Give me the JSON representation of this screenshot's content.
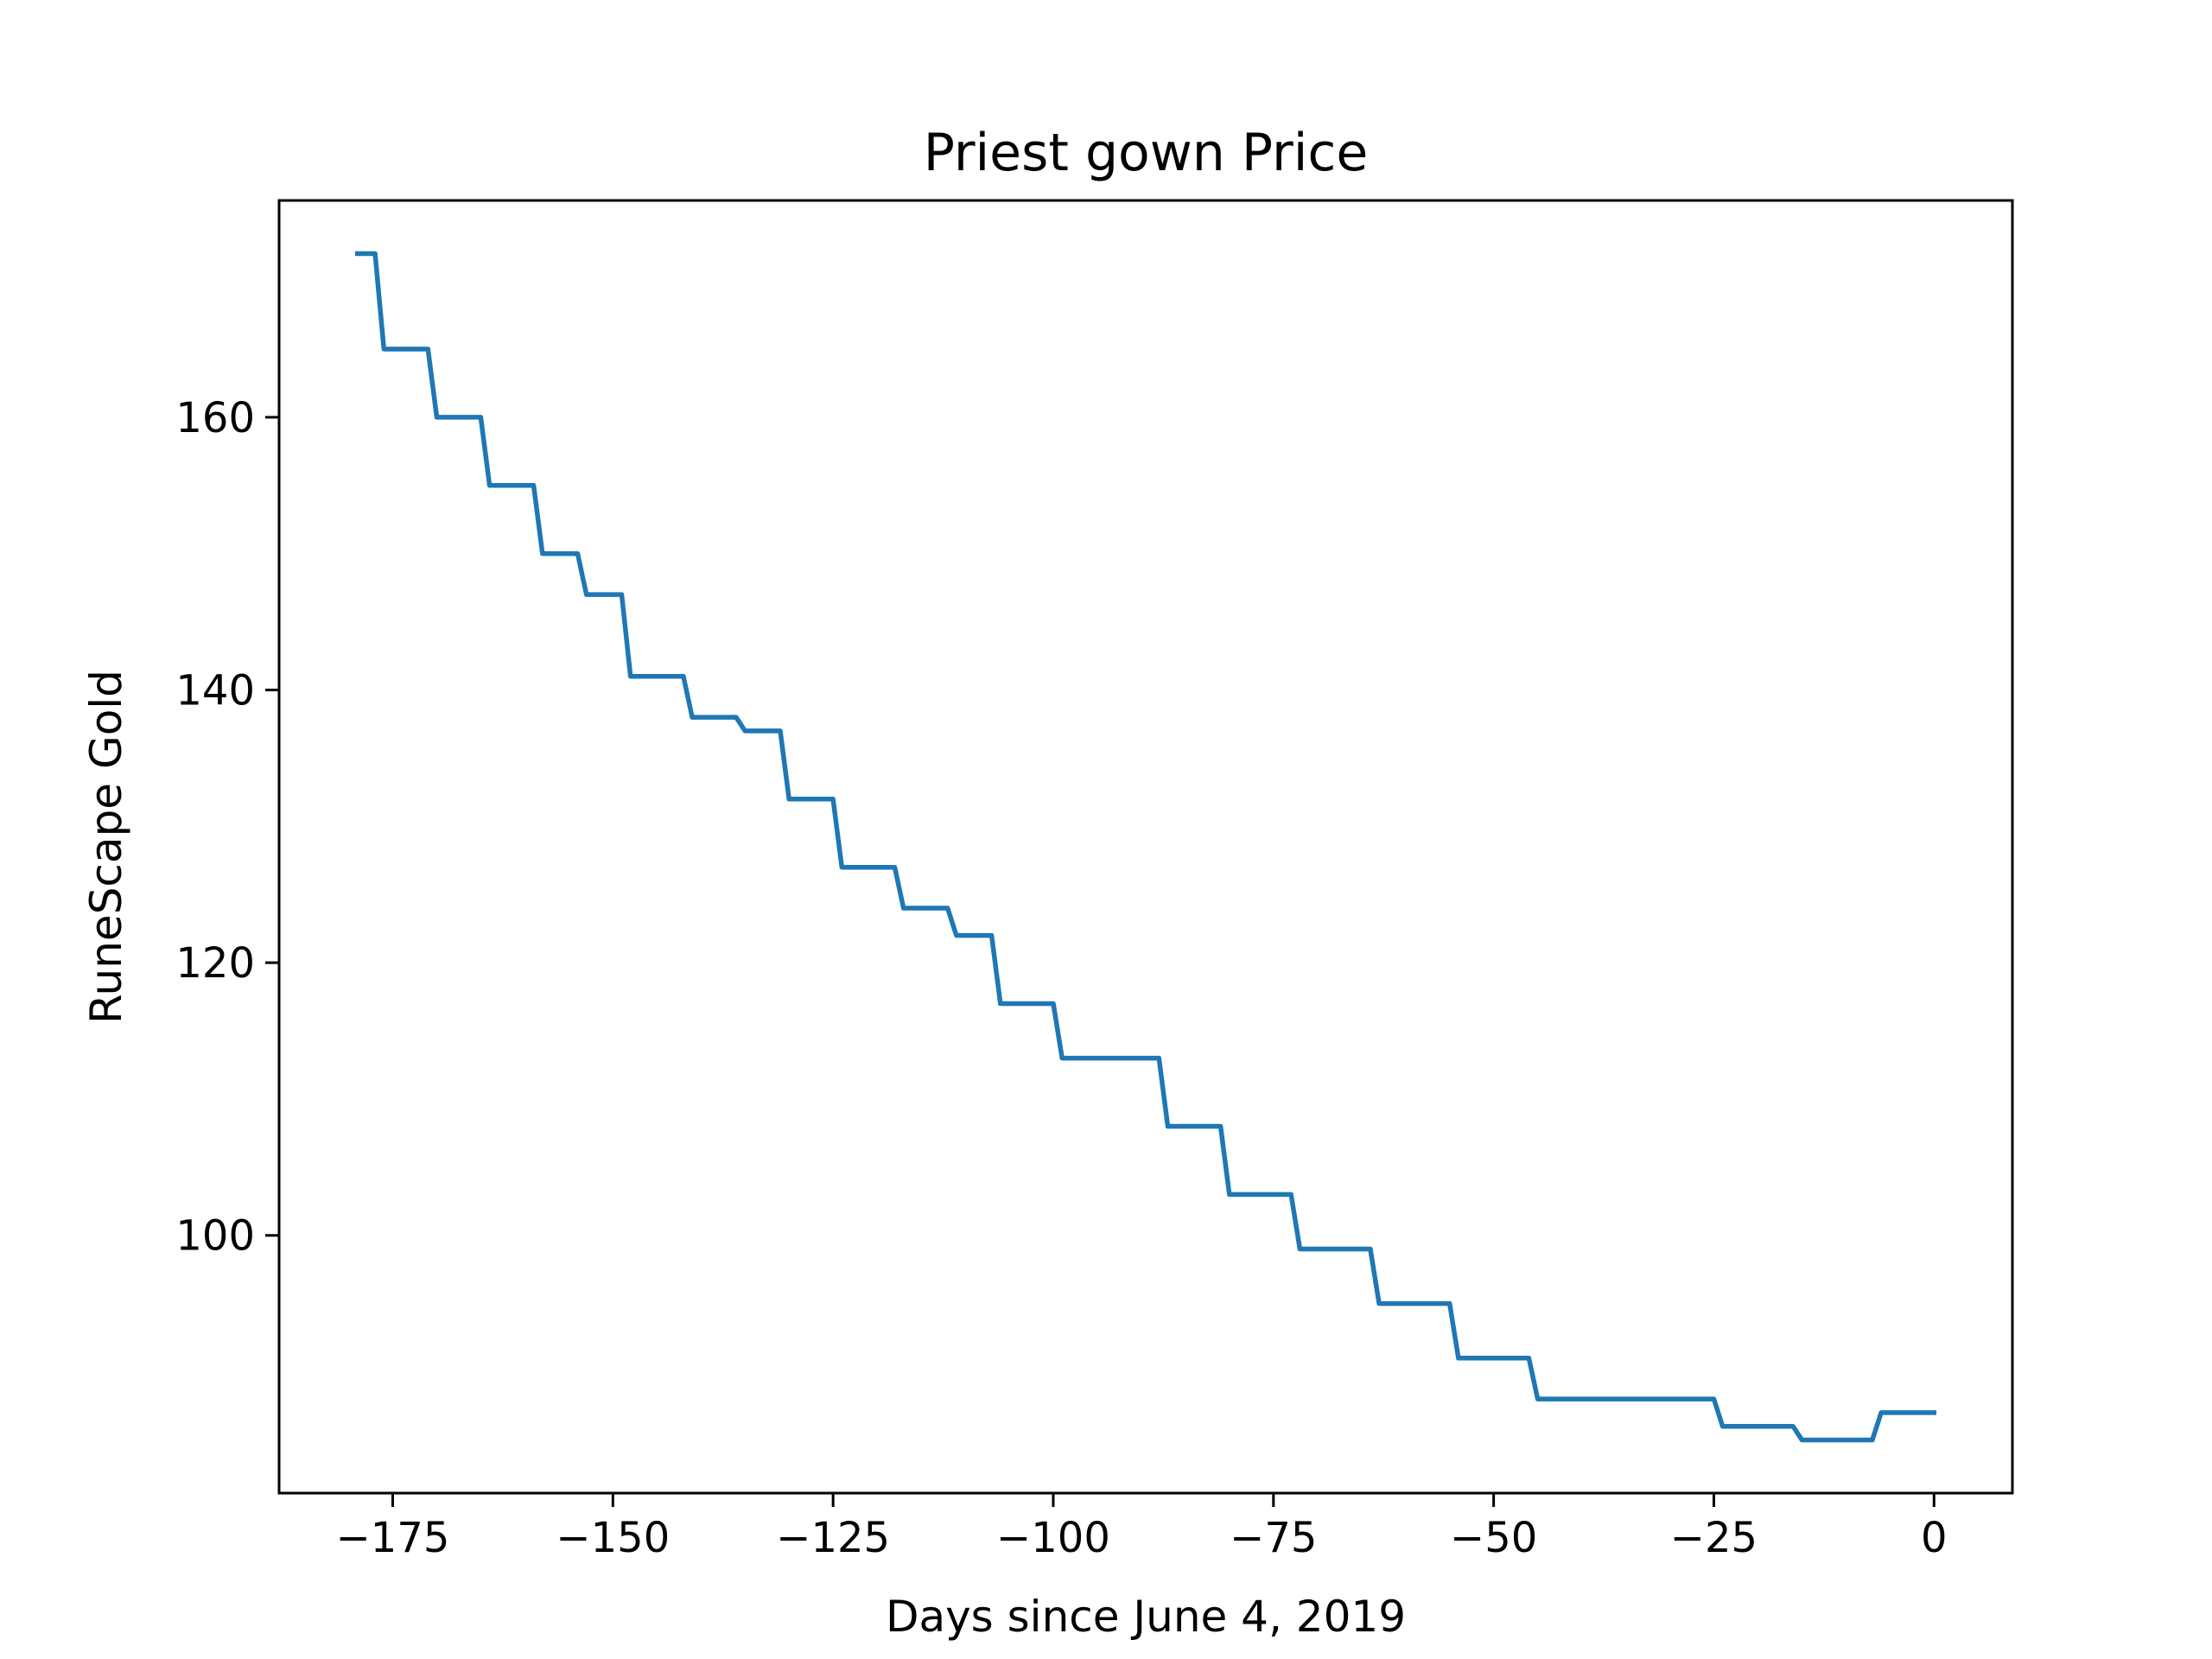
{
  "chart_data": {
    "type": "line",
    "title": "Priest gown Price",
    "xlabel": "Days since June 4, 2019",
    "ylabel": "RuneScape Gold",
    "xlim": [
      -187.9,
      8.9
    ],
    "ylim": [
      81.1,
      175.9
    ],
    "xticks": [
      -175,
      -150,
      -125,
      -100,
      -75,
      -50,
      -25,
      0
    ],
    "xtick_labels": [
      "−175",
      "−150",
      "−125",
      "−100",
      "−75",
      "−50",
      "−25",
      "0"
    ],
    "yticks": [
      100,
      120,
      140,
      160
    ],
    "ytick_labels": [
      "100",
      "120",
      "140",
      "160"
    ],
    "grid": false,
    "legend": "none",
    "series": [
      {
        "color": "#1f77b4",
        "x": [
          -179,
          -177,
          -176,
          -171,
          -170,
          -165,
          -164,
          -159,
          -158,
          -154,
          -153,
          -149,
          -148,
          -142,
          -141,
          -136,
          -135,
          -131,
          -130,
          -125,
          -124,
          -118,
          -117,
          -112,
          -111,
          -107,
          -106,
          -100,
          -99,
          -88,
          -87,
          -81,
          -80,
          -73,
          -72,
          -64,
          -63,
          -55,
          -54,
          -46,
          -45,
          -25,
          -24,
          -16,
          -15,
          -7,
          -6,
          0
        ],
        "y": [
          172,
          172,
          165,
          165,
          160,
          160,
          155,
          155,
          150,
          150,
          147,
          147,
          141,
          141,
          138,
          138,
          137,
          137,
          132,
          132,
          127,
          127,
          124,
          124,
          122,
          122,
          117,
          117,
          113,
          113,
          108,
          108,
          103,
          103,
          99,
          99,
          95,
          95,
          91,
          91,
          88,
          88,
          86,
          86,
          85,
          85,
          87,
          87
        ]
      }
    ]
  }
}
